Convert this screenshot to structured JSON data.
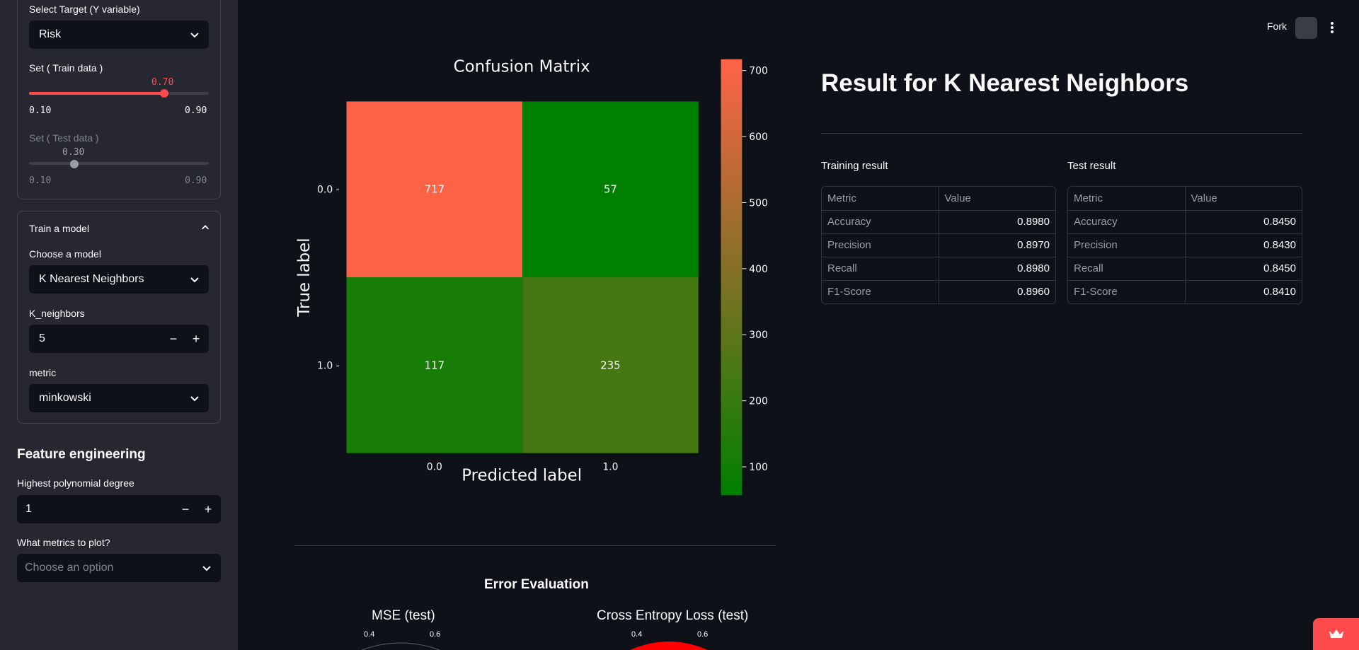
{
  "sidebar": {
    "target_label": "Select Target (Y variable)",
    "target_value": "Risk",
    "train_label": "Set ( Train data )",
    "train_value": "0.70",
    "train_min": "0.10",
    "train_max": "0.90",
    "train_fraction": 0.75,
    "test_label": "Set ( Test data )",
    "test_value": "0.30",
    "test_min": "0.10",
    "test_max": "0.90",
    "test_fraction": 0.25,
    "train_model_title": "Train a model",
    "choose_model_label": "Choose a model",
    "model_value": "K Nearest Neighbors",
    "k_label": "K_neighbors",
    "k_value": "5",
    "metric_label": "metric",
    "metric_value": "minkowski",
    "fe_title": "Feature engineering",
    "poly_label": "Highest polynomial degree",
    "poly_value": "1",
    "plot_label": "What metrics to plot?",
    "plot_placeholder": "Choose an option",
    "minus": "−",
    "plus": "+"
  },
  "header": {
    "fork": "Fork"
  },
  "results": {
    "title": "Result for K Nearest Neighbors",
    "training": {
      "heading": "Training result",
      "col_metric": "Metric",
      "col_value": "Value",
      "rows": [
        {
          "metric": "Accuracy",
          "value": "0.8980"
        },
        {
          "metric": "Precision",
          "value": "0.8970"
        },
        {
          "metric": "Recall",
          "value": "0.8980"
        },
        {
          "metric": "F1-Score",
          "value": "0.8960"
        }
      ]
    },
    "test": {
      "heading": "Test result",
      "col_metric": "Metric",
      "col_value": "Value",
      "rows": [
        {
          "metric": "Accuracy",
          "value": "0.8450"
        },
        {
          "metric": "Precision",
          "value": "0.8430"
        },
        {
          "metric": "Recall",
          "value": "0.8450"
        },
        {
          "metric": "F1-Score",
          "value": "0.8410"
        }
      ]
    }
  },
  "error_eval": {
    "title": "Error Evaluation",
    "mse_title": "MSE (test)",
    "mse_ticks": [
      "0.4",
      "0.6"
    ],
    "ce_title": "Cross Entropy Loss (test)",
    "ce_ticks": [
      "0.4",
      "0.6"
    ]
  },
  "colors": {
    "accent": "#ff4b4b",
    "low": "#008000",
    "high": "#ff6347"
  },
  "chart_data": {
    "type": "heatmap",
    "title": "Confusion Matrix",
    "xlabel": "Predicted label",
    "ylabel": "True label",
    "x_categories": [
      "0.0",
      "1.0"
    ],
    "y_categories": [
      "0.0",
      "1.0"
    ],
    "values": [
      [
        717,
        57
      ],
      [
        117,
        235
      ]
    ],
    "colorbar": {
      "min": 57,
      "max": 717,
      "ticks": [
        100,
        200,
        300,
        400,
        500,
        600,
        700
      ]
    }
  }
}
